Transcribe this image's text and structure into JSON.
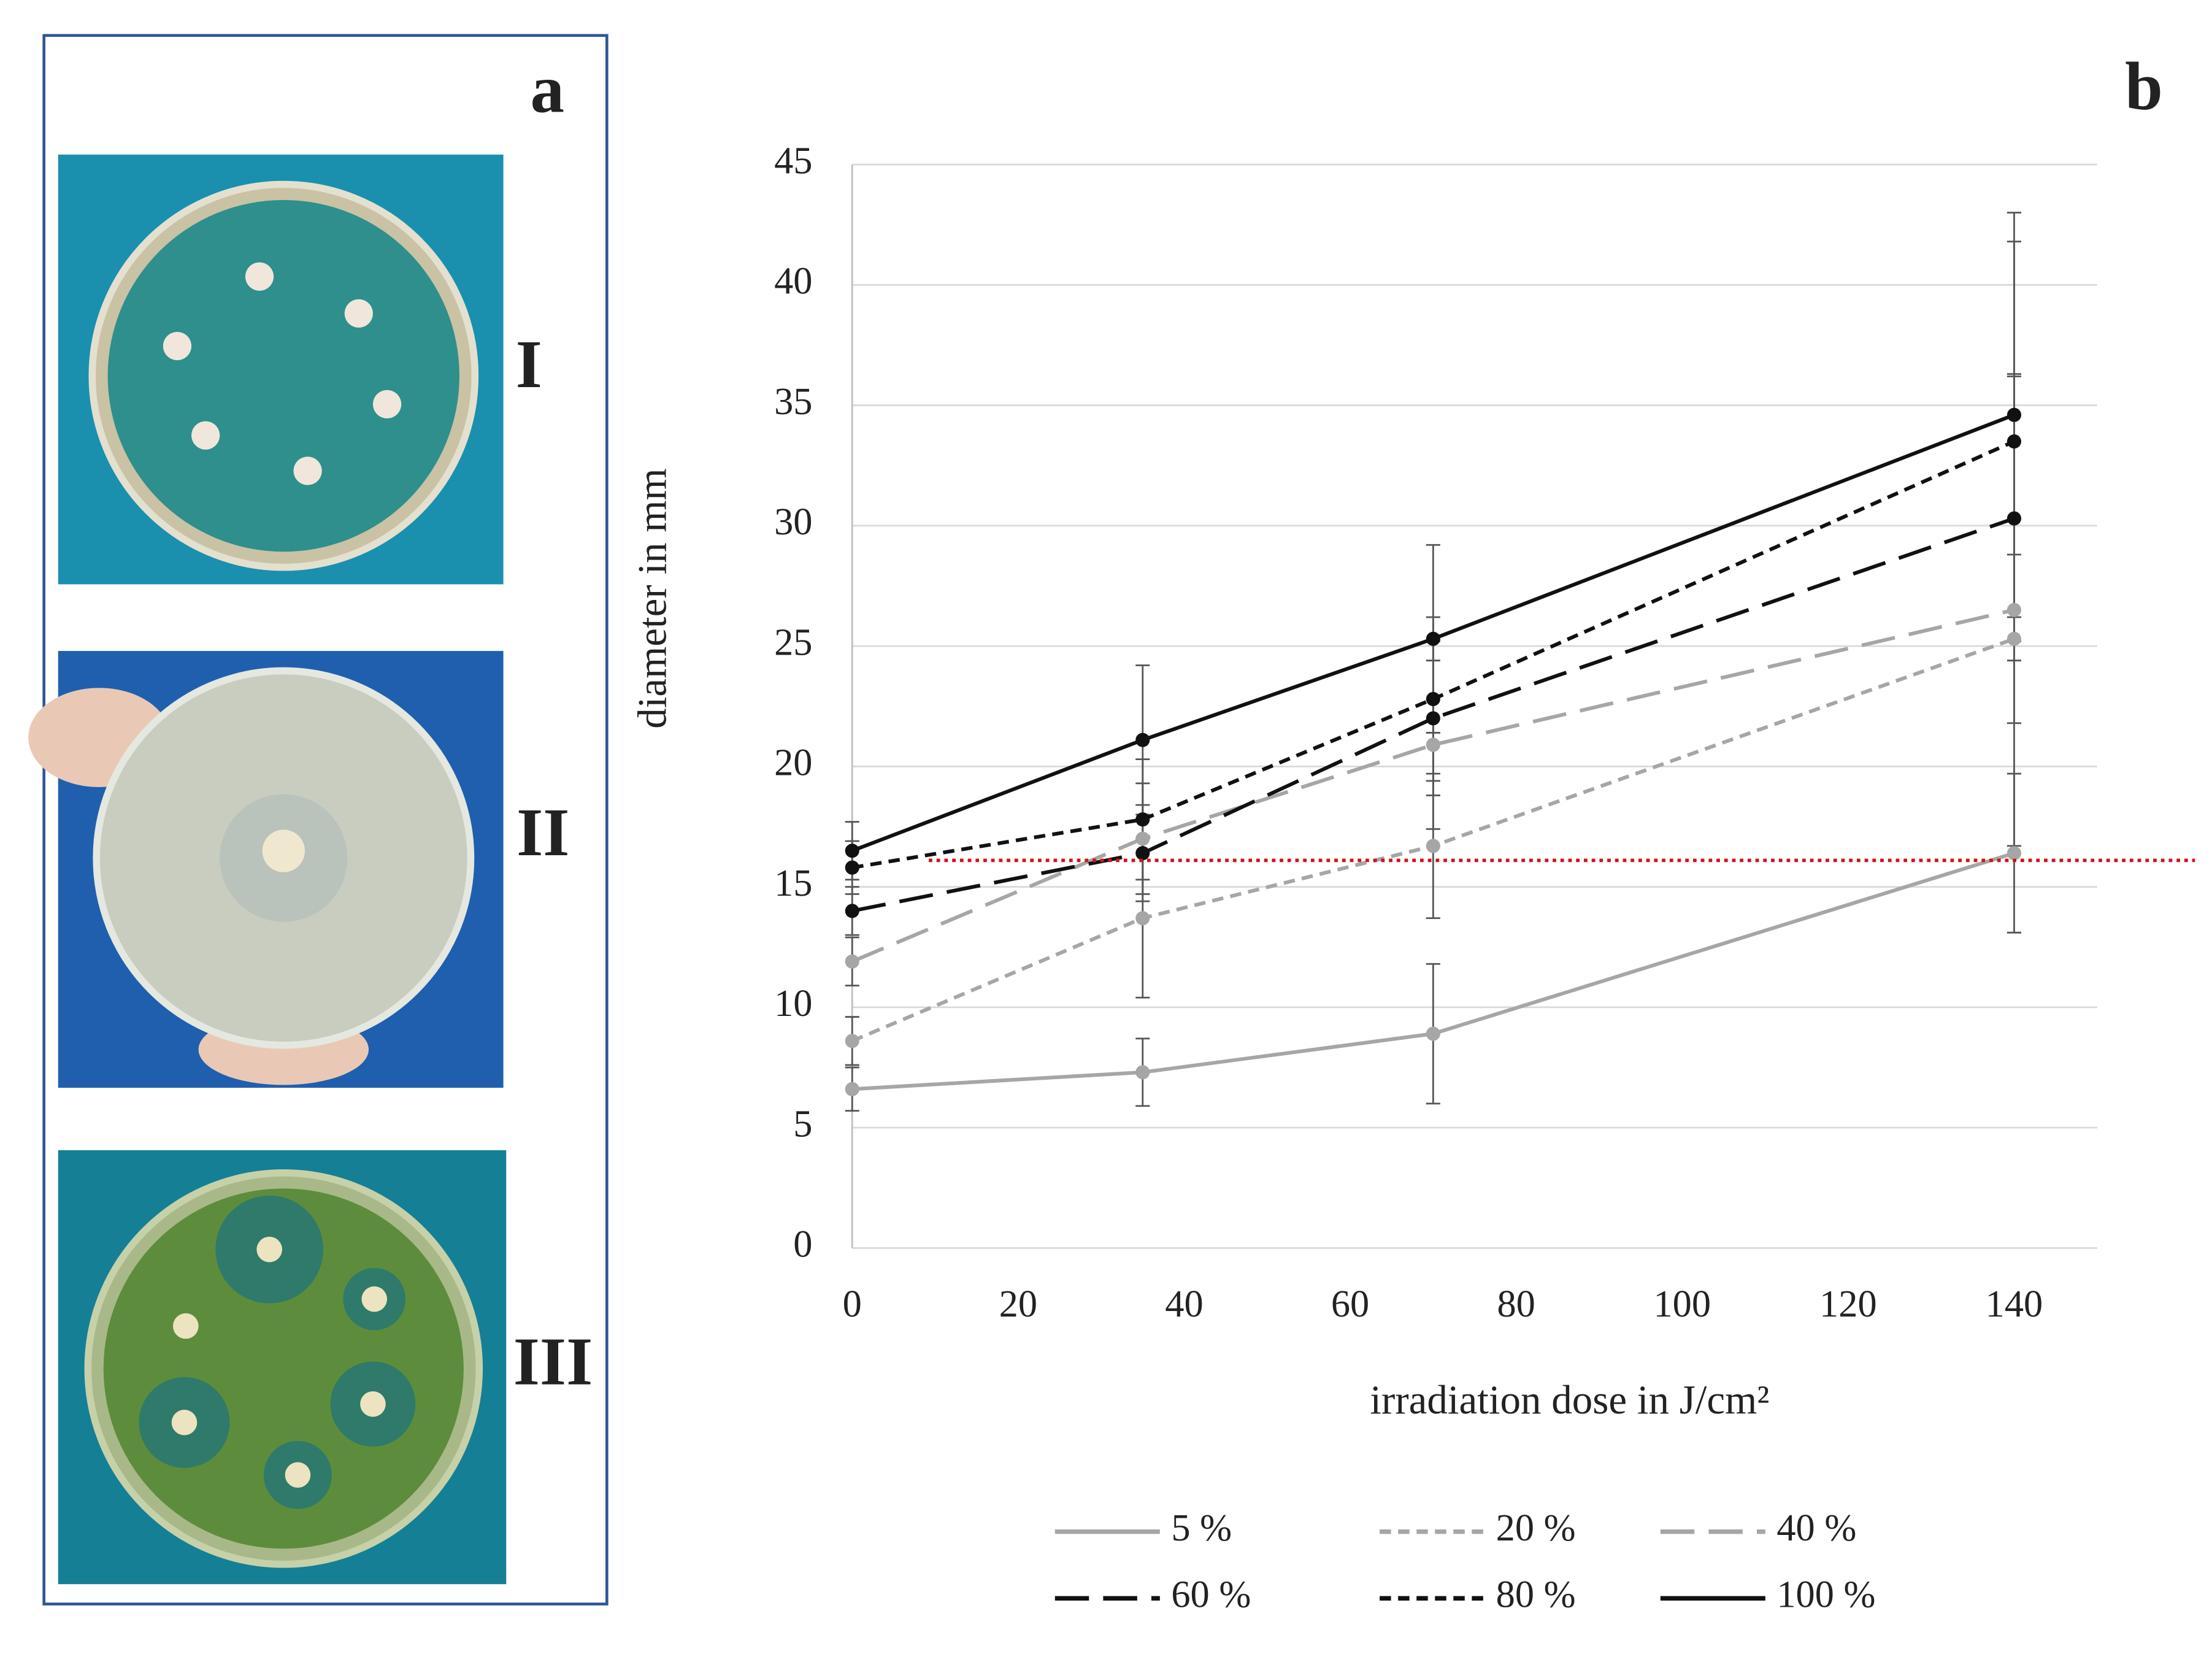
{
  "panel_labels": {
    "a": "a",
    "b": "b",
    "plates": [
      "I",
      "II",
      "III"
    ]
  },
  "chart_data": {
    "type": "line",
    "xlabel": "irradiation dose in J/cm²",
    "ylabel": "diameter in mm",
    "x": [
      0,
      35,
      70,
      140
    ],
    "xlim": [
      0,
      150
    ],
    "xticks": [
      0,
      20,
      40,
      60,
      80,
      100,
      120,
      140
    ],
    "ylim": [
      0,
      45
    ],
    "yticks": [
      0,
      5,
      10,
      15,
      20,
      25,
      30,
      35,
      40,
      45
    ],
    "grid": true,
    "reference_line": {
      "value": 16.1,
      "color": "#d0141c"
    },
    "series": [
      {
        "name": "5 %",
        "color": "#a6a6a6",
        "style": "solid",
        "values": [
          6.6,
          7.3,
          8.9,
          16.4
        ],
        "errors": [
          0.9,
          1.4,
          2.9,
          3.3
        ]
      },
      {
        "name": "20 %",
        "color": "#a6a6a6",
        "style": "short-dash",
        "values": [
          8.6,
          13.7,
          16.7,
          25.3
        ],
        "errors": [
          1.0,
          3.3,
          3.0,
          3.5
        ]
      },
      {
        "name": "40 %",
        "color": "#a6a6a6",
        "style": "long-dash",
        "values": [
          11.9,
          17.0,
          20.9,
          26.5
        ],
        "errors": [
          1.0,
          2.3,
          3.5,
          9.8
        ]
      },
      {
        "name": "60 %",
        "color": "#111111",
        "style": "long-dash",
        "values": [
          14.0,
          16.4,
          22.0,
          30.3
        ],
        "errors": [
          1.0,
          2.0,
          3.2,
          5.9
        ]
      },
      {
        "name": "80 %",
        "color": "#111111",
        "style": "short-dash",
        "values": [
          15.8,
          17.8,
          22.8,
          33.5
        ],
        "errors": [
          1.1,
          2.5,
          3.4,
          8.3
        ]
      },
      {
        "name": "100 %",
        "color": "#111111",
        "style": "solid",
        "values": [
          16.5,
          21.1,
          25.3,
          34.6
        ],
        "errors": [
          1.2,
          3.1,
          3.9,
          8.4
        ]
      }
    ]
  }
}
